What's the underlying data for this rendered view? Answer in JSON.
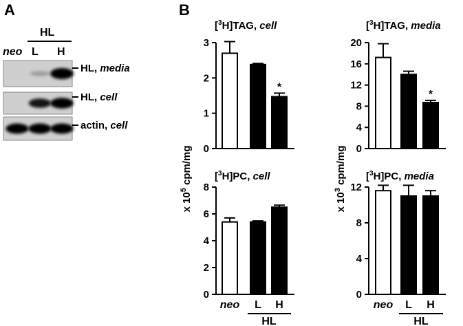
{
  "figure": {
    "panel_a": {
      "letter": "A",
      "group_label": "HL",
      "lanes": [
        "neo",
        "L",
        "H"
      ],
      "bands": [
        {
          "label": "HL, ",
          "label_italic": "media",
          "intensity": [
            0.0,
            0.1,
            1.0
          ]
        },
        {
          "label": "HL, ",
          "label_italic": "cell",
          "intensity": [
            0.0,
            0.75,
            0.95
          ]
        },
        {
          "label": "actin, ",
          "label_italic": "cell",
          "intensity": [
            0.9,
            0.9,
            0.9
          ]
        }
      ]
    },
    "panel_b": {
      "letter": "B",
      "ylabel_left": {
        "prefix": "x 10",
        "exp": "5",
        "suffix": " cpm/mg"
      },
      "ylabel_right": {
        "prefix": "x 10",
        "exp": "3",
        "suffix": " cpm/mg"
      },
      "categories": [
        "neo",
        "L",
        "H"
      ],
      "group_label": "HL"
    }
  },
  "chart_data": [
    {
      "type": "bar",
      "title": {
        "pre": "[",
        "sup": "3",
        "main": "H]TAG, ",
        "italic": "cell"
      },
      "categories": [
        "neo",
        "L",
        "H"
      ],
      "values": [
        2.7,
        2.38,
        1.47
      ],
      "errors": [
        0.33,
        0.03,
        0.1
      ],
      "significant": [
        false,
        false,
        true
      ],
      "fills": [
        "#ffffff",
        "#000000",
        "#000000"
      ],
      "ylim": [
        0,
        3
      ],
      "yticks": [
        0,
        1,
        2,
        3
      ],
      "star": "*"
    },
    {
      "type": "bar",
      "title": {
        "pre": "[",
        "sup": "3",
        "main": "H]TAG, ",
        "italic": "media"
      },
      "categories": [
        "neo",
        "L",
        "H"
      ],
      "values": [
        17.2,
        14.0,
        8.7
      ],
      "errors": [
        2.6,
        0.6,
        0.4
      ],
      "significant": [
        false,
        false,
        true
      ],
      "fills": [
        "#ffffff",
        "#000000",
        "#000000"
      ],
      "ylim": [
        0,
        20
      ],
      "yticks": [
        0,
        4,
        8,
        12,
        16,
        20
      ],
      "star": "*"
    },
    {
      "type": "bar",
      "title": {
        "pre": "[",
        "sup": "3",
        "main": "H]PC, ",
        "italic": "cell"
      },
      "categories": [
        "neo",
        "L",
        "H"
      ],
      "values": [
        5.4,
        5.4,
        6.5
      ],
      "errors": [
        0.3,
        0.08,
        0.15
      ],
      "significant": [
        false,
        false,
        false
      ],
      "fills": [
        "#ffffff",
        "#000000",
        "#000000"
      ],
      "ylim": [
        0,
        8
      ],
      "yticks": [
        0,
        2,
        4,
        6,
        8
      ],
      "star": "*"
    },
    {
      "type": "bar",
      "title": {
        "pre": "[",
        "sup": "3",
        "main": "H]PC, ",
        "italic": "media"
      },
      "categories": [
        "neo",
        "L",
        "H"
      ],
      "values": [
        11.6,
        11.0,
        11.0
      ],
      "errors": [
        0.6,
        1.2,
        0.6
      ],
      "significant": [
        false,
        false,
        false
      ],
      "fills": [
        "#ffffff",
        "#000000",
        "#000000"
      ],
      "ylim": [
        0,
        12
      ],
      "yticks": [
        0,
        4,
        8,
        12
      ],
      "star": "*"
    }
  ]
}
